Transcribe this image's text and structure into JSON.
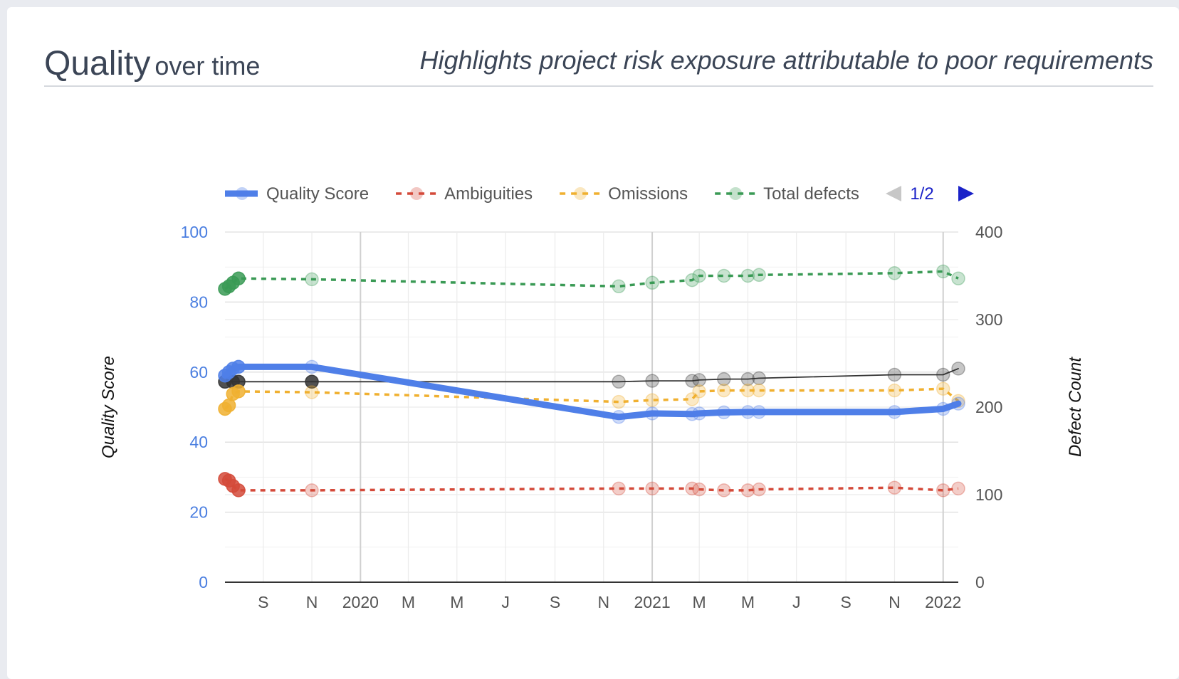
{
  "header": {
    "title_main": "Quality",
    "title_sub": "over time",
    "subtitle": "Highlights project risk exposure attributable to poor requirements"
  },
  "legend": {
    "pager": "1/2"
  },
  "colors": {
    "quality": "#4f7fe8",
    "ambiguities": "#d44a3a",
    "omissions": "#f0b030",
    "total": "#3a9a55",
    "other": "#333333"
  },
  "chart_data": {
    "type": "line",
    "x_axis": {
      "range": [
        "2019-07-15",
        "2022-01-20"
      ],
      "ticks": [
        {
          "date": "2019-09-01",
          "label": "S"
        },
        {
          "date": "2019-11-01",
          "label": "N"
        },
        {
          "date": "2020-01-01",
          "label": "2020"
        },
        {
          "date": "2020-03-01",
          "label": "M"
        },
        {
          "date": "2020-05-01",
          "label": "M"
        },
        {
          "date": "2020-07-01",
          "label": "J"
        },
        {
          "date": "2020-09-01",
          "label": "S"
        },
        {
          "date": "2020-11-01",
          "label": "N"
        },
        {
          "date": "2021-01-01",
          "label": "2021"
        },
        {
          "date": "2021-03-01",
          "label": "M"
        },
        {
          "date": "2021-05-01",
          "label": "M"
        },
        {
          "date": "2021-07-01",
          "label": "J"
        },
        {
          "date": "2021-09-01",
          "label": "S"
        },
        {
          "date": "2021-11-01",
          "label": "N"
        },
        {
          "date": "2022-01-01",
          "label": "2022"
        }
      ]
    },
    "y_left": {
      "label": "Quality Score",
      "min": 0,
      "max": 100,
      "ticks": [
        0,
        20,
        40,
        60,
        80,
        100
      ]
    },
    "y_right": {
      "label": "Defect Count",
      "min": 0,
      "max": 400,
      "ticks": [
        0,
        100,
        200,
        300,
        400
      ]
    },
    "legend_position": "top",
    "grid": true,
    "series": [
      {
        "name": "Quality Score",
        "axis": "left",
        "style": "thick",
        "color": "#4f7fe8",
        "points": [
          [
            "2019-07-15",
            59
          ],
          [
            "2019-07-20",
            60
          ],
          [
            "2019-07-25",
            61
          ],
          [
            "2019-08-01",
            61.5
          ],
          [
            "2019-11-01",
            61.5
          ],
          [
            "2020-11-20",
            47.2
          ],
          [
            "2021-01-01",
            48.2
          ],
          [
            "2021-02-20",
            48
          ],
          [
            "2021-03-01",
            48.2
          ],
          [
            "2021-04-01",
            48.5
          ],
          [
            "2021-05-01",
            48.6
          ],
          [
            "2021-05-15",
            48.6
          ],
          [
            "2021-11-01",
            48.6
          ],
          [
            "2022-01-01",
            49.5
          ],
          [
            "2022-01-20",
            51
          ]
        ]
      },
      {
        "name": "Ambiguities",
        "axis": "right",
        "style": "dashed",
        "color": "#d44a3a",
        "points": [
          [
            "2019-07-15",
            118
          ],
          [
            "2019-07-20",
            116
          ],
          [
            "2019-07-25",
            110
          ],
          [
            "2019-08-01",
            105
          ],
          [
            "2019-11-01",
            105
          ],
          [
            "2020-11-20",
            107
          ],
          [
            "2021-01-01",
            107
          ],
          [
            "2021-02-20",
            107
          ],
          [
            "2021-03-01",
            106
          ],
          [
            "2021-04-01",
            105
          ],
          [
            "2021-05-01",
            105
          ],
          [
            "2021-05-15",
            106
          ],
          [
            "2021-11-01",
            108
          ],
          [
            "2022-01-01",
            105
          ],
          [
            "2022-01-20",
            107
          ]
        ]
      },
      {
        "name": "Omissions",
        "axis": "right",
        "style": "dashed",
        "color": "#f0b030",
        "points": [
          [
            "2019-07-15",
            198
          ],
          [
            "2019-07-20",
            202
          ],
          [
            "2019-07-25",
            215
          ],
          [
            "2019-08-01",
            218
          ],
          [
            "2019-11-01",
            217
          ],
          [
            "2020-11-20",
            206
          ],
          [
            "2021-01-01",
            208
          ],
          [
            "2021-02-20",
            209
          ],
          [
            "2021-03-01",
            218
          ],
          [
            "2021-04-01",
            219
          ],
          [
            "2021-05-01",
            219
          ],
          [
            "2021-05-15",
            219
          ],
          [
            "2021-11-01",
            219
          ],
          [
            "2022-01-01",
            221
          ],
          [
            "2022-01-20",
            207
          ]
        ]
      },
      {
        "name": "Total defects",
        "axis": "right",
        "style": "dashed",
        "color": "#3a9a55",
        "points": [
          [
            "2019-07-15",
            335
          ],
          [
            "2019-07-20",
            338
          ],
          [
            "2019-07-25",
            342
          ],
          [
            "2019-08-01",
            347
          ],
          [
            "2019-11-01",
            346
          ],
          [
            "2020-11-20",
            338
          ],
          [
            "2021-01-01",
            342
          ],
          [
            "2021-02-20",
            345
          ],
          [
            "2021-03-01",
            350
          ],
          [
            "2021-04-01",
            350
          ],
          [
            "2021-05-01",
            350
          ],
          [
            "2021-05-15",
            351
          ],
          [
            "2021-11-01",
            353
          ],
          [
            "2022-01-01",
            355
          ],
          [
            "2022-01-20",
            347
          ]
        ]
      },
      {
        "axis": "right",
        "style": "thin",
        "color": "#333333",
        "points": [
          [
            "2019-07-15",
            229
          ],
          [
            "2019-07-25",
            229
          ],
          [
            "2019-08-01",
            229
          ],
          [
            "2019-11-01",
            229
          ],
          [
            "2020-11-20",
            229
          ],
          [
            "2021-01-01",
            230
          ],
          [
            "2021-02-20",
            230
          ],
          [
            "2021-03-01",
            231
          ],
          [
            "2021-04-01",
            232
          ],
          [
            "2021-05-01",
            232
          ],
          [
            "2021-05-15",
            233
          ],
          [
            "2021-11-01",
            237
          ],
          [
            "2022-01-01",
            237
          ],
          [
            "2022-01-20",
            244
          ]
        ]
      }
    ]
  }
}
